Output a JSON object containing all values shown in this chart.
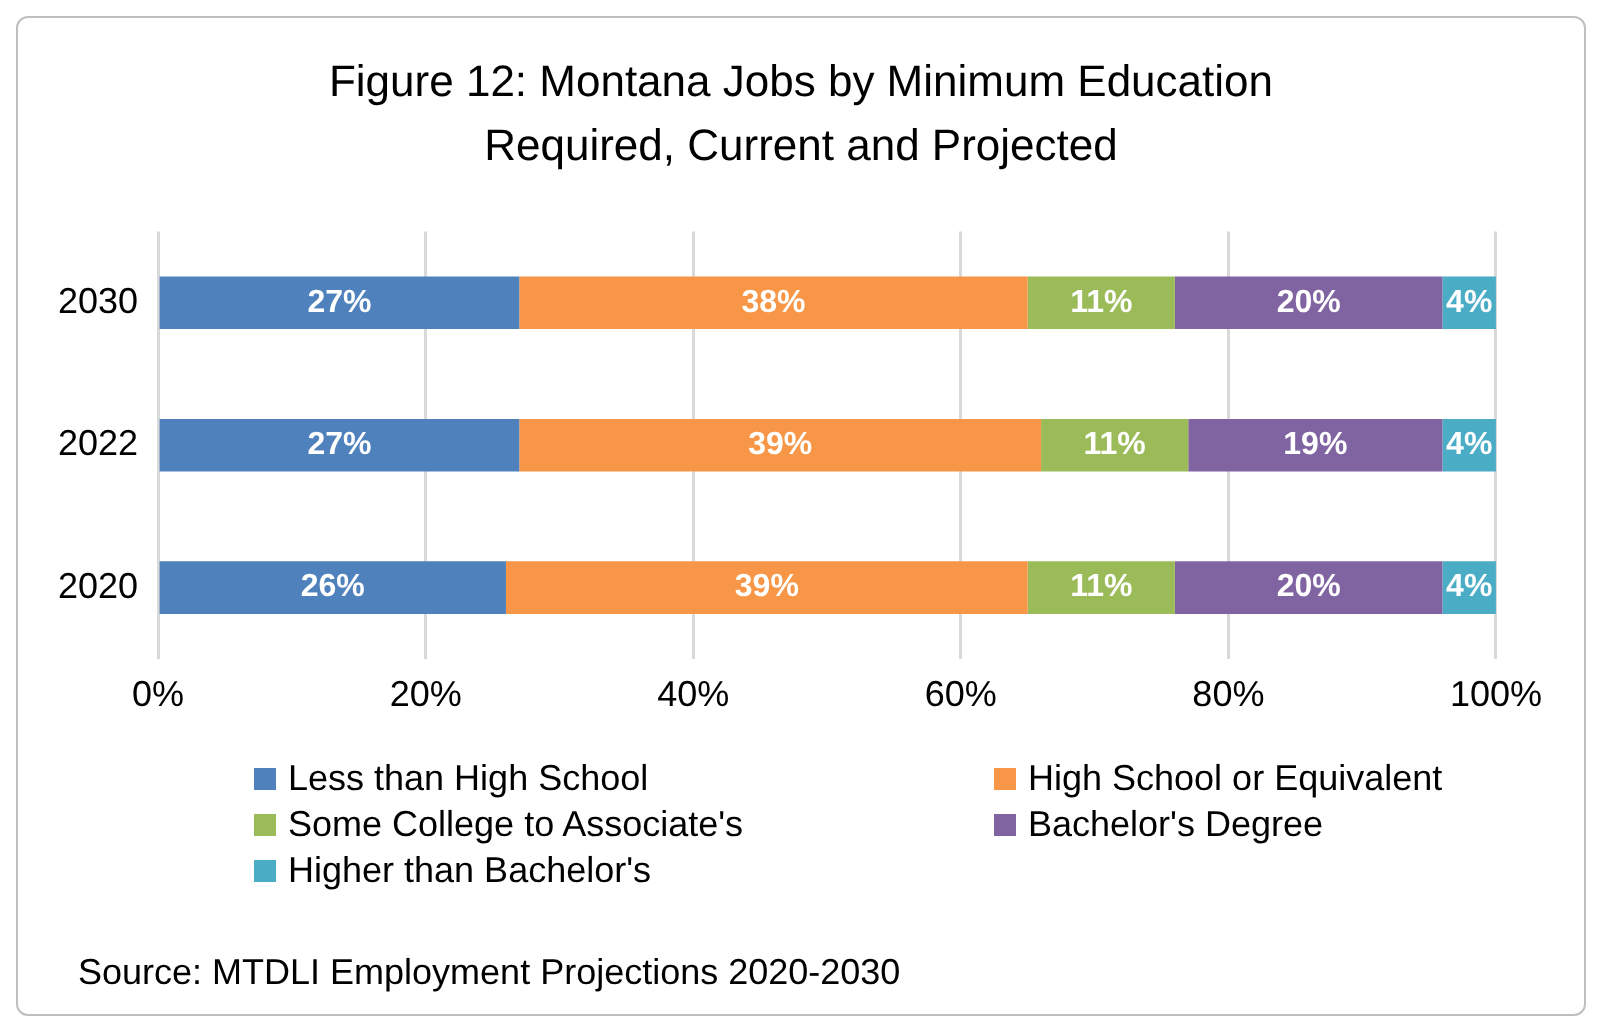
{
  "chart_data": {
    "type": "bar",
    "orientation": "horizontal",
    "stacked": true,
    "title": "Figure 12: Montana Jobs by Minimum Education Required, Current and Projected",
    "categories": [
      "2030",
      "2022",
      "2020"
    ],
    "series": [
      {
        "name": "Less than High School",
        "color": "#4f81bd",
        "values": [
          27,
          27,
          26
        ],
        "value_labels": [
          "27%",
          "27%",
          "26%"
        ]
      },
      {
        "name": "High School or Equivalent",
        "color": "#f79646",
        "values": [
          38,
          39,
          39
        ],
        "value_labels": [
          "38%",
          "39%",
          "39%"
        ]
      },
      {
        "name": "Some College to Associate's",
        "color": "#9bbb59",
        "values": [
          11,
          11,
          11
        ],
        "value_labels": [
          "11%",
          "11%",
          "11%"
        ]
      },
      {
        "name": "Bachelor's Degree",
        "color": "#8064a2",
        "values": [
          20,
          19,
          20
        ],
        "value_labels": [
          "20%",
          "19%",
          "20%"
        ]
      },
      {
        "name": "Higher than Bachelor's",
        "color": "#4bacc6",
        "values": [
          4,
          4,
          4
        ],
        "value_labels": [
          "4%",
          "4%",
          "4%"
        ]
      }
    ],
    "xlim": [
      0,
      100
    ],
    "xticks": [
      {
        "value": 0,
        "label": "0%"
      },
      {
        "value": 20,
        "label": "20%"
      },
      {
        "value": 40,
        "label": "40%"
      },
      {
        "value": 60,
        "label": "60%"
      },
      {
        "value": 80,
        "label": "80%"
      },
      {
        "value": 100,
        "label": "100%"
      }
    ],
    "grid": "x",
    "legend": "bottom",
    "annotations": [
      "Source: MTDLI Employment Projections 2020-2030"
    ]
  }
}
